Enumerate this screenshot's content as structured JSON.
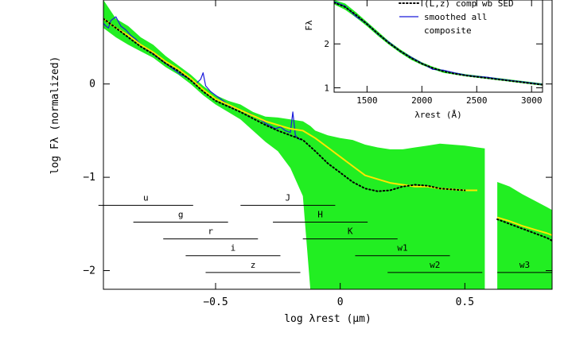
{
  "chart_data": [
    {
      "type": "line",
      "xlabel": "log λrest (μm)",
      "ylabel": "log Fλ (normalized)",
      "xlim": [
        -0.95,
        0.85
      ],
      "ylim": [
        -2.2,
        0.9
      ],
      "x_ticks": [
        {
          "value": -0.5,
          "label": "−0.5"
        },
        {
          "value": 0,
          "label": "0"
        },
        {
          "value": 0.5,
          "label": "0.5"
        }
      ],
      "y_ticks": [
        {
          "value": 0,
          "label": "0"
        },
        {
          "value": -1,
          "label": "−1"
        },
        {
          "value": -2,
          "label": "−2"
        }
      ],
      "colors": {
        "band": "#22ee22",
        "composite": "#1a1adb",
        "model": "#ffe600",
        "template": "#000000"
      },
      "series": [
        {
          "kind": "band",
          "x": [
            -0.95,
            -0.9,
            -0.85,
            -0.8,
            -0.75,
            -0.7,
            -0.65,
            -0.6,
            -0.55,
            -0.5,
            -0.45,
            -0.4,
            -0.35,
            -0.3,
            -0.25,
            -0.2,
            -0.15,
            -0.12,
            -0.1,
            -0.05,
            0,
            0.05,
            0.1,
            0.15,
            0.2,
            0.25,
            0.3,
            0.35,
            0.4,
            0.45,
            0.5,
            0.55,
            0.58
          ],
          "upper": [
            0.9,
            0.7,
            0.62,
            0.5,
            0.42,
            0.3,
            0.2,
            0.1,
            -0.02,
            -0.12,
            -0.18,
            -0.22,
            -0.3,
            -0.35,
            -0.36,
            -0.38,
            -0.4,
            -0.45,
            -0.5,
            -0.55,
            -0.58,
            -0.6,
            -0.65,
            -0.68,
            -0.7,
            -0.7,
            -0.68,
            -0.66,
            -0.64,
            -0.65,
            -0.66,
            -0.68,
            -0.69
          ],
          "lower": [
            0.6,
            0.5,
            0.42,
            0.35,
            0.28,
            0.18,
            0.1,
            0.0,
            -0.12,
            -0.22,
            -0.3,
            -0.38,
            -0.5,
            -0.62,
            -0.72,
            -0.9,
            -1.2,
            -2.2,
            -2.2,
            -2.2,
            -2.2,
            -2.2,
            -2.2,
            -2.2,
            -2.2,
            -2.2,
            -2.2,
            -2.2,
            -2.2,
            -2.2,
            -2.2,
            -2.2,
            -2.2
          ]
        },
        {
          "kind": "band2",
          "x": [
            0.63,
            0.68,
            0.73,
            0.78,
            0.83,
            0.85
          ],
          "upper": [
            -1.05,
            -1.1,
            -1.18,
            -1.25,
            -1.32,
            -1.35
          ],
          "lower": [
            -2.2,
            -2.2,
            -2.2,
            -2.2,
            -2.2,
            -2.2
          ]
        },
        {
          "kind": "composite",
          "x": [
            -0.95,
            -0.94,
            -0.93,
            -0.92,
            -0.9,
            -0.88,
            -0.86,
            -0.84,
            -0.82,
            -0.8,
            -0.78,
            -0.76,
            -0.74,
            -0.72,
            -0.7,
            -0.68,
            -0.66,
            -0.64,
            -0.62,
            -0.6,
            -0.58,
            -0.56,
            -0.55,
            -0.54,
            -0.52,
            -0.5,
            -0.48,
            -0.46,
            -0.44,
            -0.42,
            -0.4,
            -0.38,
            -0.36,
            -0.34,
            -0.32,
            -0.3,
            -0.28,
            -0.26,
            -0.24,
            -0.22,
            -0.2,
            -0.19,
            -0.18,
            -0.17,
            -0.16
          ],
          "y": [
            0.65,
            0.62,
            0.6,
            0.68,
            0.72,
            0.62,
            0.58,
            0.52,
            0.48,
            0.42,
            0.38,
            0.35,
            0.3,
            0.26,
            0.22,
            0.18,
            0.14,
            0.1,
            0.08,
            0.05,
            0.0,
            0.05,
            0.12,
            -0.02,
            -0.08,
            -0.12,
            -0.16,
            -0.2,
            -0.24,
            -0.26,
            -0.28,
            -0.3,
            -0.32,
            -0.35,
            -0.38,
            -0.42,
            -0.45,
            -0.48,
            -0.46,
            -0.5,
            -0.52,
            -0.3,
            -0.55,
            -0.58,
            -0.6
          ]
        },
        {
          "kind": "model",
          "x": [
            -0.95,
            -0.9,
            -0.85,
            -0.8,
            -0.75,
            -0.7,
            -0.65,
            -0.6,
            -0.55,
            -0.5,
            -0.45,
            -0.4,
            -0.35,
            -0.3,
            -0.25,
            -0.2,
            -0.15,
            -0.1,
            -0.05,
            0,
            0.05,
            0.1,
            0.15,
            0.2,
            0.25,
            0.3,
            0.35,
            0.4,
            0.45,
            0.5,
            0.55
          ],
          "y": [
            0.7,
            0.6,
            0.52,
            0.42,
            0.34,
            0.24,
            0.16,
            0.06,
            -0.06,
            -0.16,
            -0.22,
            -0.28,
            -0.34,
            -0.4,
            -0.44,
            -0.48,
            -0.5,
            -0.58,
            -0.68,
            -0.78,
            -0.88,
            -0.98,
            -1.02,
            -1.06,
            -1.08,
            -1.1,
            -1.1,
            -1.12,
            -1.13,
            -1.14,
            -1.14
          ]
        },
        {
          "kind": "model2",
          "x": [
            0.63,
            0.68,
            0.73,
            0.78,
            0.83,
            0.85
          ],
          "y": [
            -1.43,
            -1.47,
            -1.52,
            -1.56,
            -1.6,
            -1.62
          ]
        },
        {
          "kind": "template",
          "x": [
            -0.95,
            -0.9,
            -0.85,
            -0.8,
            -0.75,
            -0.7,
            -0.65,
            -0.6,
            -0.55,
            -0.5,
            -0.45,
            -0.4,
            -0.35,
            -0.3,
            -0.25,
            -0.2,
            -0.15,
            -0.1,
            -0.05,
            0,
            0.05,
            0.1,
            0.15,
            0.2,
            0.25,
            0.3,
            0.35,
            0.4,
            0.45,
            0.5
          ],
          "y": [
            0.7,
            0.6,
            0.5,
            0.4,
            0.32,
            0.22,
            0.14,
            0.04,
            -0.08,
            -0.18,
            -0.24,
            -0.3,
            -0.37,
            -0.44,
            -0.5,
            -0.55,
            -0.6,
            -0.72,
            -0.85,
            -0.95,
            -1.05,
            -1.12,
            -1.15,
            -1.14,
            -1.1,
            -1.08,
            -1.09,
            -1.12,
            -1.13,
            -1.14
          ]
        },
        {
          "kind": "template2",
          "x": [
            0.63,
            0.68,
            0.73,
            0.78,
            0.83,
            0.85
          ],
          "y": [
            -1.45,
            -1.5,
            -1.55,
            -1.6,
            -1.65,
            -1.68
          ]
        }
      ],
      "filters": [
        {
          "label": "u",
          "x_start": -0.97,
          "x_end": -0.59,
          "y": -1.3
        },
        {
          "label": "g",
          "x_start": -0.83,
          "x_end": -0.45,
          "y": -1.48
        },
        {
          "label": "r",
          "x_start": -0.71,
          "x_end": -0.33,
          "y": -1.66
        },
        {
          "label": "i",
          "x_start": -0.62,
          "x_end": -0.24,
          "y": -1.84
        },
        {
          "label": "z",
          "x_start": -0.54,
          "x_end": -0.16,
          "y": -2.02
        },
        {
          "label": "J",
          "x_start": -0.4,
          "x_end": -0.02,
          "y": -1.3
        },
        {
          "label": "H",
          "x_start": -0.27,
          "x_end": 0.11,
          "y": -1.48
        },
        {
          "label": "K",
          "x_start": -0.15,
          "x_end": 0.23,
          "y": -1.66
        },
        {
          "label": "w1",
          "x_start": 0.06,
          "x_end": 0.44,
          "y": -1.84
        },
        {
          "label": "w2",
          "x_start": 0.19,
          "x_end": 0.57,
          "y": -2.02
        },
        {
          "label": "w3",
          "x_start": 0.63,
          "x_end": 0.85,
          "y": -2.02
        }
      ]
    },
    {
      "type": "line",
      "name": "inset",
      "xlabel": "λrest (Å)",
      "ylabel": "Fλ",
      "xlim": [
        1200,
        3100
      ],
      "ylim": [
        0.9,
        3.0
      ],
      "x_ticks": [
        {
          "value": 1500,
          "label": "1500"
        },
        {
          "value": 2000,
          "label": "2000"
        },
        {
          "value": 2500,
          "label": "2500"
        },
        {
          "value": 3000,
          "label": "3000"
        }
      ],
      "y_ticks": [
        {
          "value": 1,
          "label": "1"
        },
        {
          "value": 2,
          "label": "2"
        }
      ],
      "legend": [
        {
          "label": "(L,z) comp wb SED",
          "style": "dotted",
          "color": "#000000"
        },
        {
          "label": "smoothed all",
          "style": "solid",
          "color": "#1a1adb"
        },
        {
          "label": "composite",
          "style": "none",
          "color": "#1a1adb"
        }
      ],
      "series": [
        {
          "kind": "band",
          "x": [
            1200,
            1300,
            1400,
            1500,
            1600,
            1700,
            1800,
            1900,
            2000,
            2100,
            2200,
            2300,
            2400,
            2500,
            2600,
            2700,
            2800,
            2900,
            3000,
            3100
          ],
          "upper": [
            3.0,
            2.92,
            2.72,
            2.5,
            2.28,
            2.06,
            1.88,
            1.72,
            1.58,
            1.48,
            1.4,
            1.35,
            1.31,
            1.28,
            1.25,
            1.22,
            1.19,
            1.16,
            1.13,
            1.1
          ],
          "lower": [
            2.9,
            2.78,
            2.6,
            2.4,
            2.18,
            1.98,
            1.8,
            1.64,
            1.52,
            1.42,
            1.34,
            1.3,
            1.26,
            1.23,
            1.2,
            1.17,
            1.14,
            1.11,
            1.08,
            1.05
          ]
        },
        {
          "kind": "composite",
          "x": [
            1200,
            1300,
            1400,
            1500,
            1600,
            1700,
            1800,
            1900,
            2000,
            2100,
            2200,
            2300,
            2400,
            2500,
            2600,
            2700,
            2800,
            2900,
            3000,
            3100
          ],
          "y": [
            2.96,
            2.86,
            2.62,
            2.46,
            2.22,
            2.04,
            1.84,
            1.7,
            1.56,
            1.42,
            1.4,
            1.34,
            1.29,
            1.26,
            1.24,
            1.2,
            1.17,
            1.14,
            1.11,
            1.08
          ]
        },
        {
          "kind": "template",
          "x": [
            1200,
            1300,
            1400,
            1500,
            1600,
            1700,
            1800,
            1900,
            2000,
            2100,
            2200,
            2300,
            2400,
            2500,
            2600,
            2700,
            2800,
            2900,
            3000,
            3100
          ],
          "y": [
            2.94,
            2.84,
            2.66,
            2.45,
            2.23,
            2.02,
            1.84,
            1.68,
            1.55,
            1.45,
            1.37,
            1.32,
            1.28,
            1.25,
            1.22,
            1.19,
            1.16,
            1.13,
            1.1,
            1.07
          ]
        }
      ]
    }
  ]
}
